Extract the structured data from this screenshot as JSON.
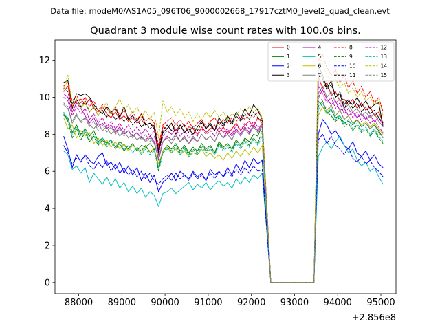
{
  "suptitle": "Data file: modeM0/AS1A05_096T06_9000002668_17917cztM0_level2_quad_clean.evt",
  "chart_data": {
    "type": "line",
    "title": "Quadrant 3 module wise count rates with 100.0s bins.",
    "xlabel": "",
    "ylabel": "",
    "offset_text": "+2.856e8",
    "xlim": [
      87450,
      95350
    ],
    "ylim": [
      -0.6,
      13.1
    ],
    "xticks": [
      88000,
      89000,
      90000,
      91000,
      92000,
      93000,
      94000,
      95000
    ],
    "xtick_labels": [
      "88000",
      "89000",
      "90000",
      "91000",
      "92000",
      "93000",
      "94000",
      "95000"
    ],
    "yticks": [
      0,
      2,
      4,
      6,
      8,
      10,
      12
    ],
    "ytick_labels": [
      "0",
      "2",
      "4",
      "6",
      "8",
      "10",
      "12"
    ],
    "x": [
      87650,
      87750,
      87850,
      87950,
      88050,
      88150,
      88250,
      88350,
      88450,
      88550,
      88650,
      88750,
      88850,
      88950,
      89050,
      89150,
      89250,
      89350,
      89450,
      89550,
      89650,
      89750,
      89850,
      89950,
      90050,
      90150,
      90250,
      90350,
      90450,
      90550,
      90650,
      90750,
      90850,
      90950,
      91050,
      91150,
      91250,
      91350,
      91450,
      91550,
      91650,
      91750,
      91850,
      91950,
      92050,
      92150,
      92250,
      92350,
      92450,
      92550,
      92650,
      92750,
      92850,
      92950,
      93050,
      93150,
      93250,
      93350,
      93450,
      93550,
      93650,
      93750,
      93850,
      93950,
      94050,
      94150,
      94250,
      94350,
      94450,
      94550,
      94650,
      94750,
      94850,
      94950,
      95050
    ],
    "gap": {
      "start": 92450,
      "end": 93450,
      "value": 0
    },
    "legend_position": "upper-right",
    "series": [
      {
        "name": "0",
        "color": "#ff0000",
        "dash": "solid",
        "pre": [
          10.3,
          10.6,
          9.5,
          9.8,
          9.9,
          9.6,
          9.9,
          9.4,
          9.2,
          9.5,
          9.1,
          8.9,
          9.2,
          8.8,
          9.0,
          8.7,
          8.9,
          8.6,
          8.8,
          8.5,
          8.6,
          8.4,
          7.2,
          8.4,
          8.3,
          8.6,
          8.2,
          8.5,
          8.1,
          8.4,
          8.3,
          8.0,
          8.4,
          8.1,
          8.3,
          8.5,
          8.1,
          8.4,
          8.0,
          8.3,
          8.6,
          8.2,
          8.5,
          8.7,
          8.4,
          8.9,
          8.6
        ],
        "post": [
          11.1,
          10.5,
          10.8,
          10.1,
          10.3,
          9.8,
          9.9,
          9.6,
          9.9,
          9.4,
          9.7,
          9.3,
          9.5,
          9.0,
          9.2,
          8.6
        ]
      },
      {
        "name": "1",
        "color": "#008000",
        "dash": "solid",
        "pre": [
          9.0,
          8.9,
          8.1,
          8.5,
          8.0,
          8.3,
          7.9,
          8.2,
          7.6,
          7.8,
          7.5,
          7.7,
          7.3,
          7.6,
          7.4,
          7.2,
          7.5,
          7.1,
          7.4,
          7.3,
          7.5,
          7.2,
          6.2,
          7.1,
          7.4,
          7.2,
          7.5,
          7.1,
          7.4,
          7.0,
          7.3,
          7.1,
          7.5,
          7.2,
          7.4,
          7.0,
          7.6,
          7.3,
          7.5,
          7.2,
          7.7,
          7.4,
          7.8,
          7.6,
          8.0,
          7.9,
          8.5
        ],
        "post": [
          9.8,
          9.5,
          9.1,
          9.3,
          8.9,
          9.0,
          8.6,
          8.7,
          8.5,
          8.8,
          8.4,
          8.6,
          8.3,
          8.5,
          8.2,
          7.8
        ]
      },
      {
        "name": "2",
        "color": "#0000ff",
        "dash": "solid",
        "pre": [
          7.9,
          7.2,
          6.2,
          6.9,
          6.5,
          6.9,
          6.6,
          6.4,
          6.8,
          7.0,
          6.3,
          6.5,
          6.1,
          6.5,
          5.9,
          6.3,
          5.8,
          6.2,
          5.5,
          5.9,
          5.4,
          5.8,
          4.9,
          5.4,
          5.6,
          5.9,
          5.5,
          6.0,
          5.8,
          5.6,
          6.0,
          5.7,
          5.9,
          5.5,
          6.1,
          5.8,
          6.0,
          5.7,
          6.2,
          5.8,
          6.4,
          6.0,
          6.6,
          6.2,
          6.7,
          6.4,
          6.6
        ],
        "post": [
          8.0,
          8.8,
          8.5,
          8.0,
          8.2,
          7.8,
          7.4,
          7.2,
          7.6,
          7.0,
          6.8,
          7.1,
          6.6,
          6.9,
          6.4,
          6.2
        ]
      },
      {
        "name": "3",
        "color": "#000000",
        "dash": "solid",
        "pre": [
          10.8,
          10.9,
          9.6,
          10.2,
          10.1,
          10.2,
          10.0,
          9.6,
          9.3,
          9.1,
          9.5,
          9.2,
          9.4,
          8.9,
          9.5,
          8.8,
          9.0,
          8.7,
          9.1,
          8.5,
          8.6,
          8.3,
          7.0,
          8.1,
          8.3,
          8.6,
          8.0,
          8.5,
          8.1,
          8.3,
          8.0,
          8.4,
          8.7,
          8.3,
          8.6,
          8.2,
          8.9,
          8.5,
          9.0,
          8.6,
          9.2,
          8.8,
          9.4,
          9.0,
          9.6,
          9.3,
          8.8
        ],
        "post": [
          11.7,
          11.2,
          10.5,
          10.9,
          10.0,
          10.2,
          9.4,
          9.8,
          9.6,
          10.0,
          9.5,
          9.8,
          9.4,
          9.6,
          9.7,
          8.4
        ]
      },
      {
        "name": "4",
        "color": "#bf00bf",
        "dash": "solid",
        "pre": [
          10.2,
          10.0,
          9.2,
          9.7,
          9.4,
          9.0,
          8.6,
          8.9,
          8.4,
          8.6,
          8.3,
          8.5,
          8.1,
          8.4,
          8.0,
          8.2,
          7.9,
          8.1,
          7.8,
          7.7,
          7.9,
          7.6,
          6.6,
          7.6,
          7.9,
          7.7,
          8.0,
          7.6,
          7.9,
          7.5,
          7.8,
          7.6,
          8.0,
          7.7,
          7.9,
          7.6,
          8.1,
          7.8,
          8.2,
          7.9,
          8.3,
          8.0,
          8.4,
          8.1,
          8.5,
          8.2,
          8.6
        ],
        "post": [
          10.0,
          10.4,
          9.9,
          9.6,
          9.8,
          9.3,
          9.4,
          9.0,
          9.2,
          8.9,
          9.1,
          8.8,
          9.0,
          8.7,
          8.9,
          8.5
        ]
      },
      {
        "name": "5",
        "color": "#00bfbf",
        "dash": "solid",
        "pre": [
          7.1,
          6.9,
          6.1,
          6.3,
          5.9,
          6.2,
          5.4,
          5.9,
          5.6,
          5.3,
          5.7,
          5.2,
          5.6,
          5.1,
          5.4,
          4.9,
          5.2,
          4.8,
          5.1,
          4.6,
          4.9,
          4.7,
          4.1,
          4.8,
          4.9,
          5.1,
          4.8,
          5.0,
          5.2,
          5.4,
          5.0,
          5.3,
          5.1,
          5.4,
          5.0,
          5.3,
          5.5,
          5.2,
          5.4,
          5.1,
          5.6,
          5.3,
          5.7,
          5.4,
          5.8,
          5.6,
          5.9
        ],
        "post": [
          6.8,
          7.3,
          7.6,
          7.2,
          7.6,
          7.9,
          7.4,
          7.0,
          7.2,
          6.6,
          6.3,
          6.5,
          6.0,
          6.2,
          5.7,
          5.3
        ]
      },
      {
        "name": "6",
        "color": "#bfbf00",
        "dash": "solid",
        "pre": [
          8.9,
          8.3,
          8.5,
          7.8,
          8.2,
          7.9,
          8.1,
          7.5,
          7.8,
          7.4,
          7.7,
          7.3,
          7.6,
          7.2,
          7.5,
          7.1,
          7.4,
          7.2,
          7.0,
          7.3,
          7.1,
          7.2,
          6.4,
          7.1,
          7.3,
          7.0,
          7.2,
          6.9,
          7.1,
          6.8,
          7.0,
          6.9,
          7.2,
          6.8,
          7.0,
          6.7,
          6.9,
          6.6,
          7.0,
          6.7,
          7.1,
          6.8,
          7.2,
          6.9,
          7.3,
          7.0,
          7.4
        ],
        "post": [
          9.0,
          9.5,
          9.1,
          9.6,
          9.0,
          9.3,
          8.8,
          9.0,
          8.6,
          8.8,
          8.5,
          8.7,
          8.4,
          8.6,
          8.3,
          8.0
        ]
      },
      {
        "name": "7",
        "color": "#808080",
        "dash": "solid",
        "pre": [
          9.6,
          9.4,
          8.6,
          9.0,
          8.7,
          8.9,
          8.5,
          8.3,
          8.6,
          8.2,
          8.4,
          8.0,
          8.3,
          7.9,
          8.2,
          7.8,
          8.0,
          7.7,
          7.9,
          7.6,
          7.8,
          7.5,
          6.7,
          7.6,
          7.8,
          7.5,
          7.9,
          7.6,
          7.8,
          7.5,
          7.9,
          7.6,
          8.0,
          7.7,
          7.9,
          7.6,
          8.1,
          7.8,
          8.0,
          7.7,
          8.2,
          7.9,
          8.3,
          8.0,
          8.4,
          8.1,
          8.5
        ],
        "post": [
          10.2,
          10.6,
          10.0,
          10.3,
          9.7,
          9.9,
          9.4,
          9.6,
          9.2,
          9.4,
          9.0,
          9.2,
          8.9,
          9.1,
          8.7,
          8.4
        ]
      },
      {
        "name": "8",
        "color": "#ff0000",
        "dash": "dashed",
        "pre": [
          10.6,
          10.8,
          9.8,
          10.1,
          9.7,
          10.0,
          9.5,
          9.8,
          9.3,
          9.6,
          9.4,
          9.1,
          9.5,
          9.0,
          9.3,
          8.9,
          9.2,
          8.8,
          9.1,
          8.7,
          8.9,
          8.6,
          7.4,
          8.5,
          8.7,
          8.9,
          8.5,
          8.8,
          8.4,
          8.7,
          8.3,
          8.6,
          8.8,
          8.4,
          8.7,
          8.9,
          8.5,
          8.8,
          8.6,
          8.9,
          8.7,
          9.0,
          8.8,
          9.1,
          8.9,
          9.2,
          8.9
        ],
        "post": [
          12.0,
          12.3,
          11.6,
          11.2,
          11.5,
          10.8,
          11.2,
          10.5,
          10.9,
          10.2,
          10.6,
          10.0,
          10.3,
          9.7,
          10.0,
          9.2
        ]
      },
      {
        "name": "9",
        "color": "#008000",
        "dash": "dashed",
        "pre": [
          9.1,
          8.7,
          7.8,
          8.3,
          7.7,
          8.1,
          7.6,
          7.9,
          7.4,
          7.7,
          7.3,
          7.6,
          7.2,
          7.5,
          7.1,
          7.4,
          7.0,
          7.3,
          7.1,
          7.4,
          7.0,
          7.2,
          6.0,
          7.0,
          7.3,
          7.1,
          7.4,
          7.0,
          7.3,
          6.9,
          7.2,
          7.0,
          7.4,
          7.1,
          7.3,
          6.9,
          7.5,
          7.2,
          7.4,
          7.1,
          7.6,
          7.3,
          7.7,
          7.4,
          7.8,
          7.5,
          8.2
        ],
        "post": [
          9.5,
          9.8,
          9.2,
          9.0,
          8.7,
          8.9,
          8.4,
          8.6,
          8.2,
          8.5,
          8.1,
          8.3,
          7.9,
          8.2,
          7.8,
          7.5
        ]
      },
      {
        "name": "10",
        "color": "#0000ff",
        "dash": "dashed",
        "pre": [
          7.4,
          7.0,
          6.4,
          6.7,
          6.6,
          6.8,
          6.3,
          6.1,
          6.5,
          6.2,
          6.6,
          6.0,
          6.4,
          5.9,
          6.2,
          5.8,
          6.1,
          5.7,
          6.0,
          5.6,
          5.9,
          5.5,
          5.3,
          5.6,
          5.8,
          5.5,
          5.9,
          5.6,
          5.8,
          5.5,
          5.9,
          5.6,
          5.8,
          5.5,
          5.9,
          5.6,
          6.0,
          5.7,
          6.0,
          5.7,
          6.1,
          5.8,
          6.2,
          5.9,
          6.3,
          6.0,
          6.1
        ],
        "post": [
          7.7,
          8.0,
          7.5,
          7.9,
          7.4,
          7.2,
          6.9,
          7.3,
          6.7,
          6.5,
          6.8,
          6.4,
          6.6,
          6.2,
          6.0,
          5.7
        ]
      },
      {
        "name": "11",
        "color": "#000000",
        "dash": "dashed",
        "pre": [
          10.5,
          10.3,
          9.4,
          9.9,
          9.5,
          9.8,
          9.2,
          9.5,
          9.0,
          9.3,
          8.9,
          9.2,
          8.8,
          9.0,
          8.7,
          8.9,
          8.5,
          8.8,
          8.4,
          8.6,
          8.3,
          8.5,
          7.1,
          8.2,
          8.5,
          8.2,
          8.6,
          8.3,
          8.5,
          8.1,
          8.4,
          8.2,
          8.6,
          8.3,
          8.5,
          8.2,
          8.7,
          8.4,
          8.8,
          8.5,
          9.0,
          8.7,
          9.1,
          8.8,
          9.2,
          8.9,
          8.7
        ],
        "post": [
          11.3,
          11.0,
          10.4,
          10.7,
          10.0,
          10.3,
          9.6,
          9.9,
          9.4,
          9.7,
          9.2,
          9.5,
          9.1,
          9.3,
          8.9,
          8.6
        ]
      },
      {
        "name": "12",
        "color": "#bf00bf",
        "dash": "dashed",
        "pre": [
          10.0,
          9.8,
          9.0,
          9.5,
          9.1,
          9.4,
          8.8,
          9.1,
          8.6,
          8.9,
          8.4,
          8.7,
          8.3,
          8.6,
          8.2,
          8.5,
          8.1,
          8.4,
          8.0,
          8.3,
          7.9,
          8.2,
          6.9,
          7.9,
          8.2,
          8.0,
          8.3,
          7.9,
          8.2,
          7.8,
          8.1,
          7.9,
          8.3,
          8.0,
          8.2,
          7.9,
          8.4,
          8.1,
          8.3,
          8.0,
          8.5,
          8.2,
          8.6,
          8.3,
          8.7,
          8.4,
          8.5
        ],
        "post": [
          10.6,
          10.2,
          9.7,
          10.0,
          9.4,
          9.7,
          9.1,
          9.4,
          8.9,
          9.2,
          8.7,
          9.0,
          8.6,
          8.8,
          8.4,
          8.1
        ]
      },
      {
        "name": "13",
        "color": "#00bfbf",
        "dash": "dashed",
        "pre": [
          9.2,
          8.8,
          8.0,
          8.4,
          7.9,
          8.2,
          7.7,
          8.0,
          7.5,
          7.8,
          7.4,
          7.7,
          7.3,
          7.5,
          7.2,
          7.4,
          7.0,
          7.3,
          6.9,
          7.2,
          6.9,
          7.1,
          6.2,
          7.0,
          7.2,
          7.0,
          7.3,
          6.9,
          7.2,
          6.8,
          7.1,
          6.9,
          7.3,
          7.0,
          7.2,
          6.9,
          7.4,
          7.1,
          7.3,
          7.0,
          7.5,
          7.2,
          7.6,
          7.3,
          7.7,
          7.4,
          7.9
        ],
        "post": [
          9.3,
          9.7,
          9.1,
          9.4,
          8.8,
          9.0,
          8.5,
          8.8,
          8.3,
          8.6,
          8.2,
          8.4,
          8.0,
          8.3,
          7.9,
          7.6
        ]
      },
      {
        "name": "14",
        "color": "#bfbf00",
        "dash": "dashed",
        "pre": [
          10.4,
          11.2,
          9.6,
          9.9,
          9.4,
          9.7,
          9.2,
          9.5,
          9.0,
          9.4,
          9.7,
          9.1,
          9.5,
          9.9,
          9.3,
          9.6,
          9.1,
          9.5,
          8.9,
          9.3,
          8.8,
          9.2,
          7.8,
          9.8,
          9.2,
          9.5,
          9.0,
          9.4,
          8.9,
          9.2,
          8.7,
          9.1,
          8.8,
          9.2,
          8.9,
          9.3,
          8.9,
          9.2,
          8.8,
          9.1,
          9.0,
          9.4,
          9.1,
          9.5,
          9.2,
          9.4,
          8.9
        ],
        "post": [
          12.4,
          11.8,
          11.2,
          10.8,
          11.0,
          10.5,
          10.8,
          10.2,
          10.5,
          10.0,
          10.3,
          9.8,
          10.0,
          9.6,
          9.9,
          9.0
        ]
      },
      {
        "name": "15",
        "color": "#808080",
        "dash": "dashed",
        "pre": [
          9.7,
          9.5,
          8.7,
          9.1,
          8.6,
          8.9,
          8.4,
          8.7,
          8.2,
          8.5,
          8.1,
          8.4,
          8.0,
          8.3,
          7.9,
          8.2,
          7.8,
          8.1,
          7.7,
          8.0,
          7.6,
          7.9,
          6.8,
          7.6,
          7.9,
          7.7,
          8.0,
          7.6,
          7.9,
          7.5,
          7.8,
          7.6,
          8.0,
          7.7,
          7.9,
          7.6,
          8.1,
          7.8,
          8.0,
          7.7,
          8.2,
          7.9,
          8.3,
          8.0,
          8.4,
          8.1,
          8.3
        ],
        "post": [
          10.1,
          9.8,
          9.3,
          9.6,
          9.0,
          9.3,
          8.8,
          9.0,
          8.6,
          8.8,
          8.4,
          8.6,
          8.3,
          8.5,
          8.1,
          7.8
        ]
      }
    ]
  }
}
